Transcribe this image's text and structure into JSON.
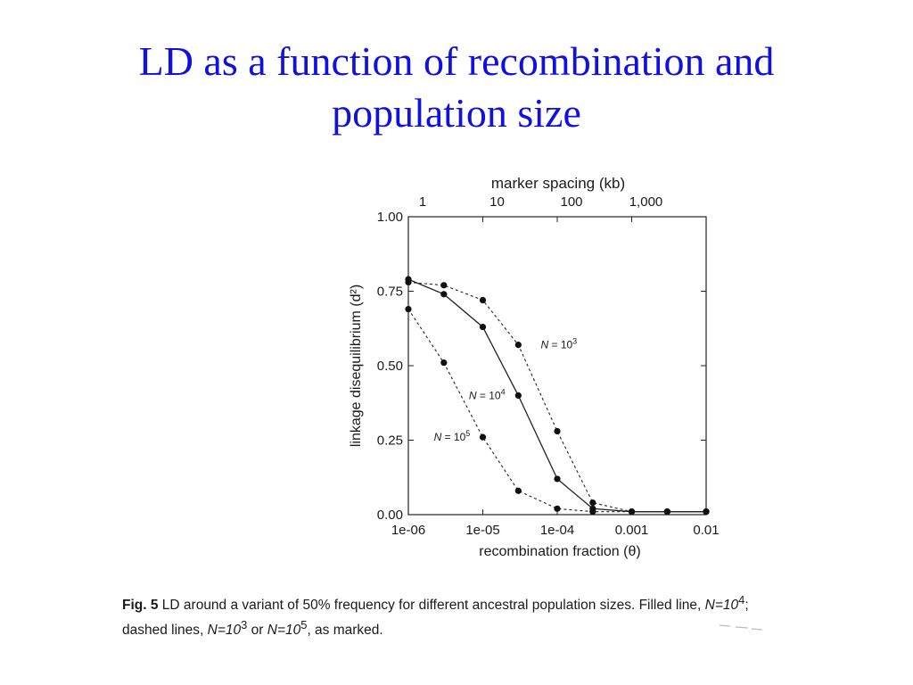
{
  "slide": {
    "title_line1": "LD as a function of recombination and",
    "title_line2": "population size",
    "title_color": "#1010e0"
  },
  "caption": {
    "fig_label": "Fig. 5",
    "text_1": " LD around a variant of 50% frequency for different ancestral population sizes. Filled line, ",
    "n1_base": "N=10",
    "n1_exp": "4",
    "text_2": "; dashed lines, ",
    "n2_base": "N=10",
    "n2_exp": "3",
    "text_3": " or ",
    "n3_base": "N=10",
    "n3_exp": "5",
    "text_4": ", as marked."
  },
  "chart_data": {
    "type": "line",
    "x_scale": "log",
    "xlim": [
      1e-06,
      0.01
    ],
    "ylim": [
      0,
      1
    ],
    "grid": false,
    "xlabel": "recombination fraction (θ)",
    "ylabel": "linkage disequilibrium (d²)",
    "x_ticks": [
      {
        "value": 1e-06,
        "label": "1e-06"
      },
      {
        "value": 1e-05,
        "label": "1e-05"
      },
      {
        "value": 0.0001,
        "label": "1e-04"
      },
      {
        "value": 0.001,
        "label": "0.001"
      },
      {
        "value": 0.01,
        "label": "0.01"
      }
    ],
    "y_ticks": [
      {
        "value": 0.0,
        "label": "0.00"
      },
      {
        "value": 0.25,
        "label": "0.25"
      },
      {
        "value": 0.5,
        "label": "0.50"
      },
      {
        "value": 0.75,
        "label": "0.75"
      },
      {
        "value": 1.0,
        "label": "1.00"
      }
    ],
    "top_axis": {
      "label": "marker spacing (kb)",
      "ticks": [
        {
          "value": 1e-06,
          "label": "1"
        },
        {
          "value": 1e-05,
          "label": "10"
        },
        {
          "value": 0.0001,
          "label": "100"
        },
        {
          "value": 0.001,
          "label": "1,000"
        }
      ]
    },
    "series": [
      {
        "name": "N = 10³",
        "label_base": "N = 10",
        "label_exp": "3",
        "label_at": {
          "x": 6e-05,
          "y": 0.57
        },
        "style": "dashed",
        "x": [
          1e-06,
          3e-06,
          1e-05,
          3e-05,
          0.0001,
          0.0003,
          0.001,
          0.003,
          0.01
        ],
        "y": [
          0.78,
          0.77,
          0.72,
          0.57,
          0.28,
          0.04,
          0.01,
          0.01,
          0.01
        ]
      },
      {
        "name": "N = 10⁴",
        "label_base": "N = 10",
        "label_exp": "4",
        "label_at": {
          "x": 6.5e-06,
          "y": 0.4
        },
        "style": "solid",
        "x": [
          1e-06,
          3e-06,
          1e-05,
          3e-05,
          0.0001,
          0.0003,
          0.001,
          0.003,
          0.01
        ],
        "y": [
          0.79,
          0.74,
          0.63,
          0.4,
          0.12,
          0.02,
          0.01,
          0.01,
          0.01
        ]
      },
      {
        "name": "N = 10⁵",
        "label_base": "N = 10",
        "label_exp": "5",
        "label_at": {
          "x": 2.2e-06,
          "y": 0.26
        },
        "style": "dashed",
        "x": [
          1e-06,
          3e-06,
          1e-05,
          3e-05,
          0.0001,
          0.0003,
          0.001,
          0.003,
          0.01
        ],
        "y": [
          0.69,
          0.51,
          0.26,
          0.08,
          0.02,
          0.01,
          0.01,
          0.01,
          0.01
        ]
      }
    ]
  }
}
